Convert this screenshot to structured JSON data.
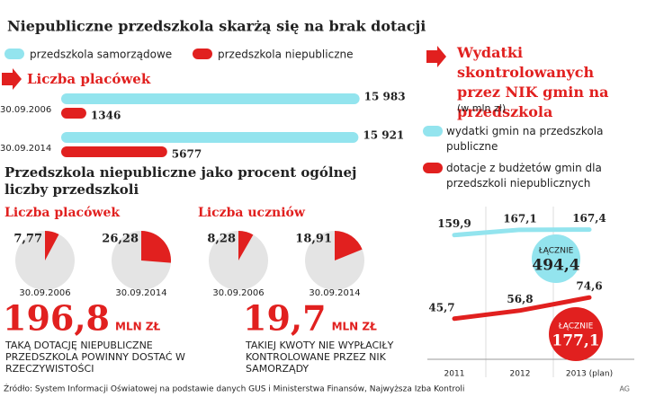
{
  "title": "Niepubliczne przedszkola skarżą się na brak dotacji",
  "chart_data": [
    {
      "type": "bar",
      "orientation": "horizontal",
      "title": "Liczba placówek",
      "categories": [
        "30.09.2006",
        "30.09.2014"
      ],
      "series": [
        {
          "name": "przedszkola samorządowe",
          "color": "#93e4ee",
          "values": [
            15983,
            15921
          ],
          "value_labels": [
            "15 983",
            "15 921"
          ]
        },
        {
          "name": "przedszkola niepubliczne",
          "color": "#e1201f",
          "values": [
            1346,
            5677
          ],
          "value_labels": [
            "1346",
            "5677"
          ]
        }
      ],
      "xlim": [
        0,
        16000
      ]
    },
    {
      "type": "pie",
      "title": "Liczba placówek",
      "categories": [
        "30.09.2006",
        "30.09.2014"
      ],
      "values": [
        7.77,
        26.28
      ],
      "value_labels": [
        "7,77",
        "26,28"
      ],
      "color": "#e1201f",
      "rest_color": "#e4e4e4"
    },
    {
      "type": "pie",
      "title": "Liczba uczniów",
      "categories": [
        "30.09.2006",
        "30.09.2014"
      ],
      "values": [
        8.28,
        18.91
      ],
      "value_labels": [
        "8,28",
        "18,91"
      ],
      "color": "#e1201f",
      "rest_color": "#e4e4e4"
    },
    {
      "type": "line",
      "title": "Wydatki skontrolowanych przez NIK gmin na przedszkola",
      "subtitle": "(w mln zł)",
      "categories": [
        "2011",
        "2012",
        "2013 (plan)"
      ],
      "series": [
        {
          "name": "wydatki gmin na przedszkola publiczne",
          "color": "#93e4ee",
          "values": [
            159.9,
            167.1,
            167.4
          ],
          "value_labels": [
            "159,9",
            "167,1",
            "167,4"
          ],
          "total_label": "ŁĄCZNIE",
          "total": "494,4"
        },
        {
          "name": "dotacje z budżetów gmin dla przedszkoli niepublicznych",
          "color": "#e1201f",
          "values": [
            45.7,
            56.8,
            74.6
          ],
          "value_labels": [
            "45,7",
            "56,8",
            "74,6"
          ],
          "total_label": "ŁĄCZNIE",
          "total": "177,1"
        }
      ],
      "ylim": [
        0,
        200
      ]
    }
  ],
  "pie_section_title": "Przedszkola niepubliczne jako procent ogólnej liczby przedszkoli",
  "facts": [
    {
      "amount": "196,8",
      "unit": "MLN ZŁ",
      "text": "TAKĄ DOTACJĘ NIEPUBLICZNE PRZEDSZKOLA POWINNY DOSTAĆ W RZECZYWISTOŚCI"
    },
    {
      "amount": "19,7",
      "unit": "MLN ZŁ",
      "text": "TAKIEJ KWOTY NIE WYPŁACIŁY KONTROLOWANE PRZEZ NIK SAMORZĄDY"
    }
  ],
  "source": "Źródło: System Informacji Oświatowej na podstawie danych GUS i Ministerstwa Finansów, Najwyższa Izba Kontroli",
  "credit": "AG"
}
